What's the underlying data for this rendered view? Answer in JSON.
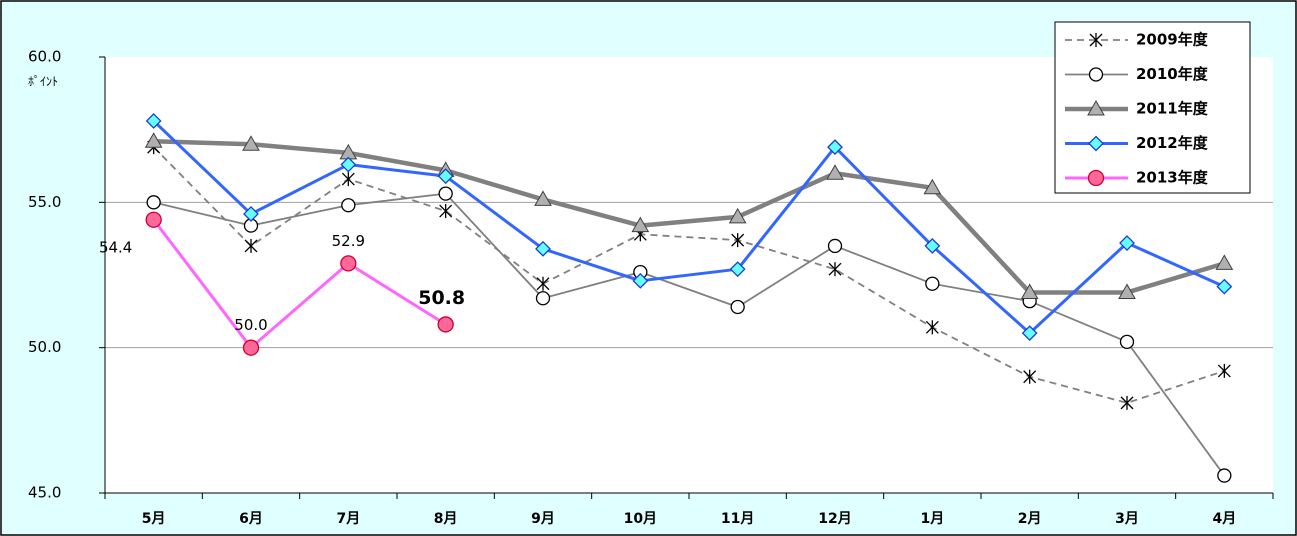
{
  "chart_data": {
    "type": "line",
    "y_label": "ﾎﾟｲﾝﾄ",
    "categories": [
      "5月",
      "6月",
      "7月",
      "8月",
      "9月",
      "10月",
      "11月",
      "12月",
      "1月",
      "2月",
      "3月",
      "4月"
    ],
    "ylim": [
      45,
      60
    ],
    "yticks": [
      {
        "value": 45,
        "label": "45.0"
      },
      {
        "value": 50,
        "label": "50.0"
      },
      {
        "value": 55,
        "label": "55.0"
      },
      {
        "value": 60,
        "label": "60.0"
      }
    ],
    "grid": true,
    "legend": "top-right",
    "series": [
      {
        "name": "2009年度",
        "color": "#808080",
        "line_style": "dashed",
        "marker": "asterisk",
        "values": [
          56.9,
          53.5,
          55.8,
          54.7,
          52.2,
          53.9,
          53.7,
          52.7,
          50.7,
          49.0,
          48.1,
          49.2
        ]
      },
      {
        "name": "2010年度",
        "color": "#808080",
        "marker": "circle",
        "values": [
          55.0,
          54.2,
          54.9,
          55.3,
          51.7,
          52.6,
          51.4,
          53.5,
          52.2,
          51.6,
          50.2,
          45.6
        ]
      },
      {
        "name": "2011年度",
        "color": "#808080",
        "marker": "triangle",
        "values": [
          57.1,
          57.0,
          56.7,
          56.1,
          55.1,
          54.2,
          54.5,
          56.0,
          55.5,
          51.9,
          51.9,
          52.9
        ]
      },
      {
        "name": "2012年度",
        "color": "#3366ff",
        "marker": "diamond",
        "values": [
          57.8,
          54.6,
          56.3,
          55.9,
          53.4,
          52.3,
          52.7,
          56.9,
          53.5,
          50.5,
          53.6,
          52.1
        ]
      },
      {
        "name": "2013年度",
        "color": "#ff66ff",
        "marker": "dot",
        "values": [
          54.4,
          50.0,
          52.9,
          50.8,
          null,
          null,
          null,
          null,
          null,
          null,
          null,
          null
        ],
        "value_labels": [
          "54.4",
          "50.0",
          "52.9",
          "50.8",
          null,
          null,
          null,
          null,
          null,
          null,
          null,
          null
        ]
      }
    ]
  }
}
